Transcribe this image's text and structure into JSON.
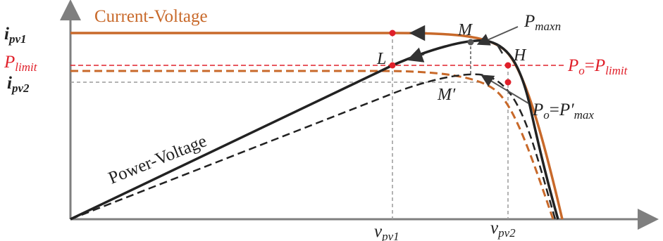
{
  "labels": {
    "current_voltage": "Current-Voltage",
    "power_voltage": "Power-Voltage",
    "i_pv1": {
      "base": "i",
      "sub": "pv1"
    },
    "i_pv2": {
      "base": "i",
      "sub": "pv2"
    },
    "p_limit": {
      "base": "P",
      "sub": "limit"
    },
    "v_pv1": {
      "base": "v",
      "sub": "pv1"
    },
    "v_pv2": {
      "base": "v",
      "sub": "pv2"
    },
    "p_maxn": {
      "base": "P",
      "sub": "maxn"
    },
    "po_eq_plimit": {
      "lhs_base": "P",
      "lhs_sub": "o",
      "eq": "=",
      "rhs_base": "P",
      "rhs_sub": "limit"
    },
    "po_eq_pmax_prime": {
      "lhs_base": "P",
      "lhs_sub": "o",
      "eq": "=",
      "rhs_base": "P′",
      "rhs_sub": "max"
    },
    "point_M": "M",
    "point_M_prime": "M′",
    "point_L": "L",
    "point_H": "H"
  },
  "colors": {
    "axis": "#7f7f7f",
    "power_curve": "#222222",
    "current_curve": "#c8692a",
    "limit_color": "#e0202a",
    "guide": "#9a9a9a",
    "marker": "#e0202a"
  }
}
